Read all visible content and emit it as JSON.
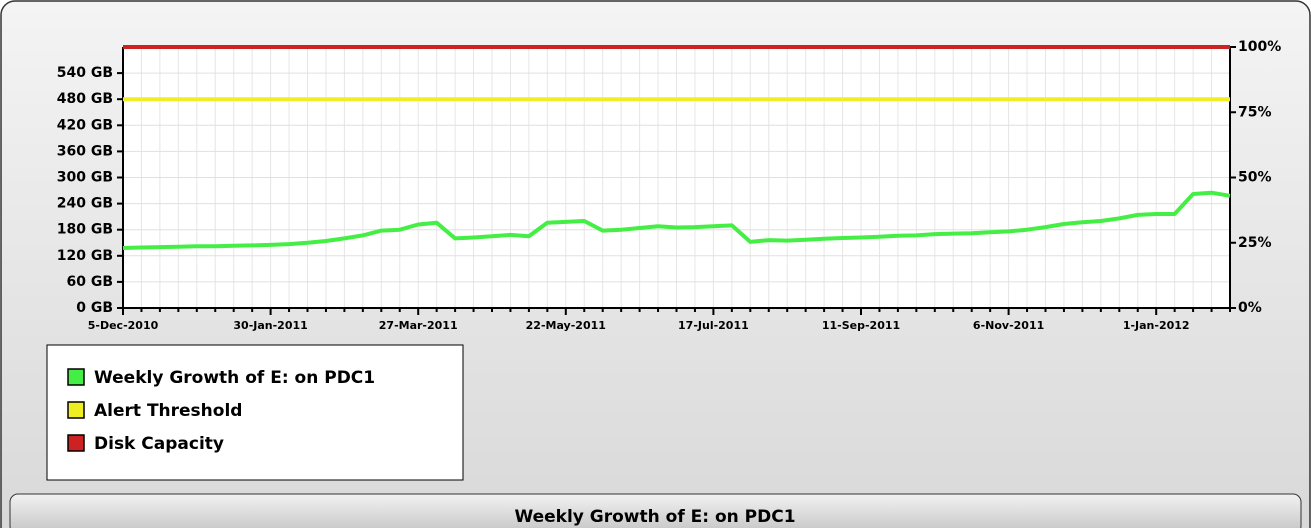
{
  "chart_data": {
    "type": "line",
    "title": "Weekly Growth of E: on PDC1",
    "categories": [
      "5-Dec-2010",
      null,
      null,
      null,
      null,
      null,
      null,
      null,
      "30-Jan-2011",
      null,
      null,
      null,
      null,
      null,
      null,
      null,
      "27-Mar-2011",
      null,
      null,
      null,
      null,
      null,
      null,
      null,
      "22-May-2011",
      null,
      null,
      null,
      null,
      null,
      null,
      null,
      "17-Jul-2011",
      null,
      null,
      null,
      null,
      null,
      null,
      null,
      "11-Sep-2011",
      null,
      null,
      null,
      null,
      null,
      null,
      null,
      "6-Nov-2011",
      null,
      null,
      null,
      null,
      null,
      null,
      null,
      "1-Jan-2012",
      null,
      null,
      null,
      null
    ],
    "series": [
      {
        "name": "Weekly Growth of E: on PDC1",
        "color": "#44ee44",
        "values": [
          138,
          139,
          140,
          141,
          142,
          142,
          143,
          144,
          145,
          147,
          150,
          154,
          160,
          167,
          178,
          180,
          192,
          196,
          160,
          162,
          165,
          168,
          165,
          196,
          198,
          200,
          178,
          180,
          184,
          188,
          185,
          186,
          188,
          190,
          152,
          156,
          155,
          157,
          159,
          161,
          162,
          164,
          166,
          167,
          170,
          171,
          172,
          174,
          176,
          180,
          186,
          193,
          197,
          200,
          206,
          214,
          216,
          216,
          262,
          265,
          258
        ]
      },
      {
        "name": "Alert Threshold",
        "color": "#eeee22",
        "values": [
          480,
          480,
          480,
          480,
          480,
          480,
          480,
          480,
          480,
          480,
          480,
          480,
          480,
          480,
          480,
          480,
          480,
          480,
          480,
          480,
          480,
          480,
          480,
          480,
          480,
          480,
          480,
          480,
          480,
          480,
          480,
          480,
          480,
          480,
          480,
          480,
          480,
          480,
          480,
          480,
          480,
          480,
          480,
          480,
          480,
          480,
          480,
          480,
          480,
          480,
          480,
          480,
          480,
          480,
          480,
          480,
          480,
          480,
          480,
          480,
          480
        ]
      },
      {
        "name": "Disk Capacity",
        "color": "#cc2222",
        "values": [
          600,
          600,
          600,
          600,
          600,
          600,
          600,
          600,
          600,
          600,
          600,
          600,
          600,
          600,
          600,
          600,
          600,
          600,
          600,
          600,
          600,
          600,
          600,
          600,
          600,
          600,
          600,
          600,
          600,
          600,
          600,
          600,
          600,
          600,
          600,
          600,
          600,
          600,
          600,
          600,
          600,
          600,
          600,
          600,
          600,
          600,
          600,
          600,
          600,
          600,
          600,
          600,
          600,
          600,
          600,
          600,
          600,
          600,
          600,
          600,
          600
        ]
      }
    ],
    "ylim": [
      0,
      600
    ],
    "yticks": [
      {
        "value": 0,
        "label": "0 GB"
      },
      {
        "value": 60,
        "label": "60 GB"
      },
      {
        "value": 120,
        "label": "120 GB"
      },
      {
        "value": 180,
        "label": "180 GB"
      },
      {
        "value": 240,
        "label": "240 GB"
      },
      {
        "value": 300,
        "label": "300 GB"
      },
      {
        "value": 360,
        "label": "360 GB"
      },
      {
        "value": 420,
        "label": "420 GB"
      },
      {
        "value": 480,
        "label": "480 GB"
      },
      {
        "value": 540,
        "label": "540 GB"
      }
    ],
    "y2lim": [
      0,
      100
    ],
    "y2ticks": [
      {
        "value": 0,
        "label": "0%"
      },
      {
        "value": 25,
        "label": "25%"
      },
      {
        "value": 50,
        "label": "50%"
      },
      {
        "value": 75,
        "label": "75%"
      },
      {
        "value": 100,
        "label": "100%"
      }
    ],
    "grid": true,
    "legend": "bottom-left"
  }
}
